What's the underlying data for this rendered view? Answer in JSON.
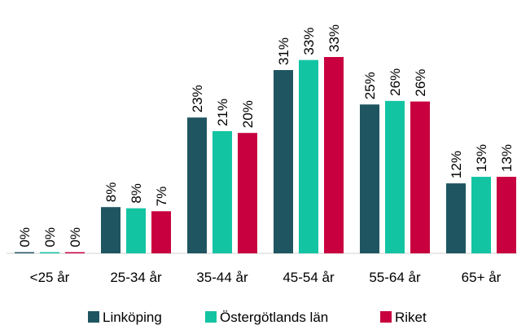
{
  "chart_data": {
    "type": "bar",
    "categories": [
      "<25 år",
      "25-34 år",
      "35-44 år",
      "45-54 år",
      "55-64 år",
      "65+ år"
    ],
    "series": [
      {
        "name": "Linköping",
        "color": "#1f5561",
        "values": [
          0.2,
          7.8,
          22.9,
          30.9,
          25.1,
          11.8
        ],
        "value_labels": [
          "0%",
          "8%",
          "23%",
          "31%",
          "25%",
          "12%"
        ]
      },
      {
        "name": "Östergötlands län",
        "color": "#13c4a3",
        "values": [
          0.2,
          7.6,
          20.6,
          32.6,
          25.7,
          12.9
        ],
        "value_labels": [
          "0%",
          "8%",
          "21%",
          "33%",
          "26%",
          "13%"
        ]
      },
      {
        "name": "Riket",
        "color": "#c8003f",
        "values": [
          0.2,
          7.1,
          20.3,
          33.1,
          25.6,
          12.9
        ],
        "value_labels": [
          "0%",
          "7%",
          "20%",
          "33%",
          "26%",
          "13%"
        ]
      }
    ]
  }
}
